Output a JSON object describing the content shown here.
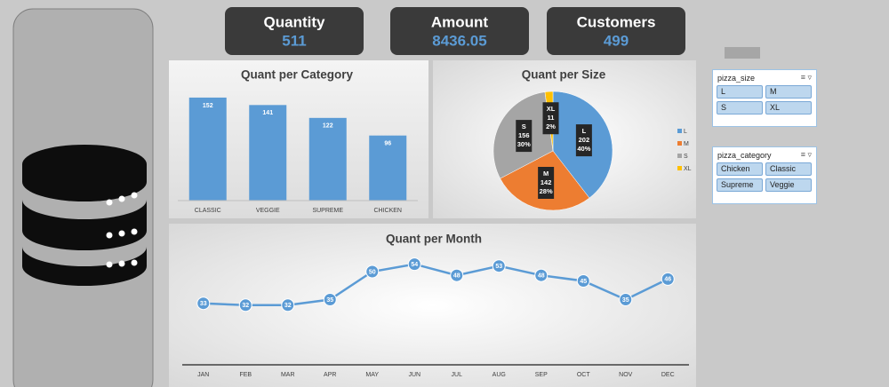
{
  "kpis": [
    {
      "label": "Quantity",
      "value": 511
    },
    {
      "label": "Amount",
      "value": 8436.05
    },
    {
      "label": "Customers",
      "value": 499
    }
  ],
  "chart_data": [
    {
      "type": "bar",
      "title": "Quant per Category",
      "categories": [
        "CLASSIC",
        "VEGGIE",
        "SUPREME",
        "CHICKEN"
      ],
      "values": [
        152,
        141,
        122,
        96
      ],
      "color": "#5b9bd5",
      "ylim": [
        0,
        165
      ]
    },
    {
      "type": "pie",
      "title": "Quant per Size",
      "categories": [
        "L",
        "M",
        "S",
        "XL"
      ],
      "values": [
        202,
        142,
        156,
        11
      ],
      "percent_labels": [
        "40%",
        "28%",
        "30%",
        "2%"
      ],
      "colors": [
        "#5b9bd5",
        "#ed7d31",
        "#a5a5a5",
        "#ffc000"
      ],
      "legend": "right"
    },
    {
      "type": "line",
      "title": "Quant per Month",
      "categories": [
        "JAN",
        "FEB",
        "MAR",
        "APR",
        "MAY",
        "JUN",
        "JUL",
        "AUG",
        "SEP",
        "OCT",
        "NOV",
        "DEC"
      ],
      "values": [
        33,
        32,
        32,
        35,
        50,
        54,
        48,
        53,
        48,
        45,
        35,
        46
      ],
      "color": "#5b9bd5",
      "ylim": [
        0,
        60
      ]
    }
  ],
  "slicers": [
    {
      "title": "pizza_size",
      "items": [
        "L",
        "M",
        "S",
        "XL"
      ]
    },
    {
      "title": "pizza_category",
      "items": [
        "Chicken",
        "Classic",
        "Supreme",
        "Veggie"
      ]
    }
  ]
}
